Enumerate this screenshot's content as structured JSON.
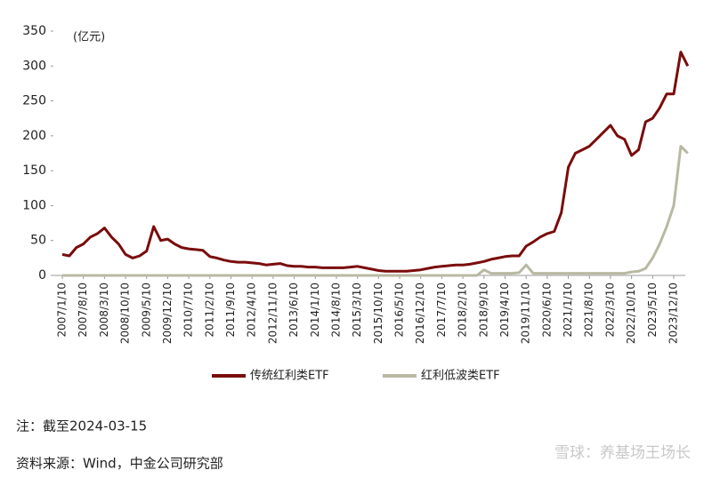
{
  "chart_data": {
    "type": "line",
    "unit_label": "(亿元)",
    "categories": [
      "2007/1/10",
      null,
      null,
      "2007/8/10",
      null,
      null,
      "2008/3/10",
      null,
      null,
      "2008/10/10",
      null,
      null,
      "2009/5/10",
      null,
      null,
      "2009/12/10",
      null,
      null,
      "2010/7/10",
      null,
      null,
      "2011/2/10",
      null,
      null,
      "2011/9/10",
      null,
      null,
      "2012/4/10",
      null,
      null,
      "2012/11/10",
      null,
      null,
      "2013/6/10",
      null,
      null,
      "2014/1/10",
      null,
      null,
      "2014/8/10",
      null,
      null,
      "2015/3/10",
      null,
      null,
      "2015/10/10",
      null,
      null,
      "2016/5/10",
      null,
      null,
      "2016/12/10",
      null,
      null,
      "2017/7/10",
      null,
      null,
      "2018/2/10",
      null,
      null,
      "2018/9/10",
      null,
      null,
      "2019/4/10",
      null,
      null,
      "2019/11/10",
      null,
      null,
      "2020/6/10",
      null,
      null,
      "2021/1/10",
      null,
      null,
      "2021/8/10",
      null,
      null,
      "2022/3/10",
      null,
      null,
      "2022/10/10",
      null,
      null,
      "2023/5/10",
      null,
      null,
      "2023/12/10",
      null,
      null
    ],
    "series": [
      {
        "name": "传统红利类ETF",
        "color": "#7a0c0c",
        "values": [
          30,
          28,
          40,
          45,
          55,
          60,
          68,
          55,
          45,
          30,
          25,
          28,
          35,
          70,
          50,
          52,
          45,
          40,
          38,
          37,
          36,
          27,
          25,
          22,
          20,
          19,
          19,
          18,
          17,
          15,
          16,
          17,
          14,
          13,
          13,
          12,
          12,
          11,
          11,
          11,
          11,
          12,
          13,
          11,
          9,
          7,
          6,
          6,
          6,
          6,
          7,
          8,
          10,
          12,
          13,
          14,
          15,
          15,
          16,
          18,
          20,
          23,
          25,
          27,
          28,
          28,
          42,
          48,
          55,
          60,
          63,
          90,
          155,
          175,
          180,
          185,
          195,
          205,
          215,
          200,
          195,
          172,
          180,
          220,
          225,
          240,
          260,
          260,
          320,
          300
        ]
      },
      {
        "name": "红利低波类ETF",
        "color": "#b9b9a3",
        "values": [
          0,
          0,
          0,
          0,
          0,
          0,
          0,
          0,
          0,
          0,
          0,
          0,
          0,
          0,
          0,
          0,
          0,
          0,
          0,
          0,
          0,
          0,
          0,
          0,
          0,
          0,
          0,
          0,
          0,
          0,
          0,
          0,
          0,
          0,
          0,
          0,
          0,
          0,
          0,
          0,
          0,
          0,
          0,
          0,
          0,
          0,
          0,
          0,
          0,
          0,
          0,
          0,
          0,
          0,
          0,
          0,
          0,
          0,
          0,
          0,
          8,
          3,
          3,
          3,
          3,
          4,
          15,
          3,
          3,
          3,
          3,
          3,
          3,
          3,
          3,
          3,
          3,
          3,
          3,
          3,
          3,
          5,
          6,
          10,
          25,
          45,
          70,
          100,
          185,
          175
        ]
      }
    ],
    "ylim": [
      0,
      350
    ],
    "yticks": [
      0,
      50,
      100,
      150,
      200,
      250,
      300,
      350
    ],
    "note": "注：截至2024-03-15",
    "source": "资料来源：Wind，中金公司研究部",
    "watermark": "雪球：养基场王场长"
  }
}
